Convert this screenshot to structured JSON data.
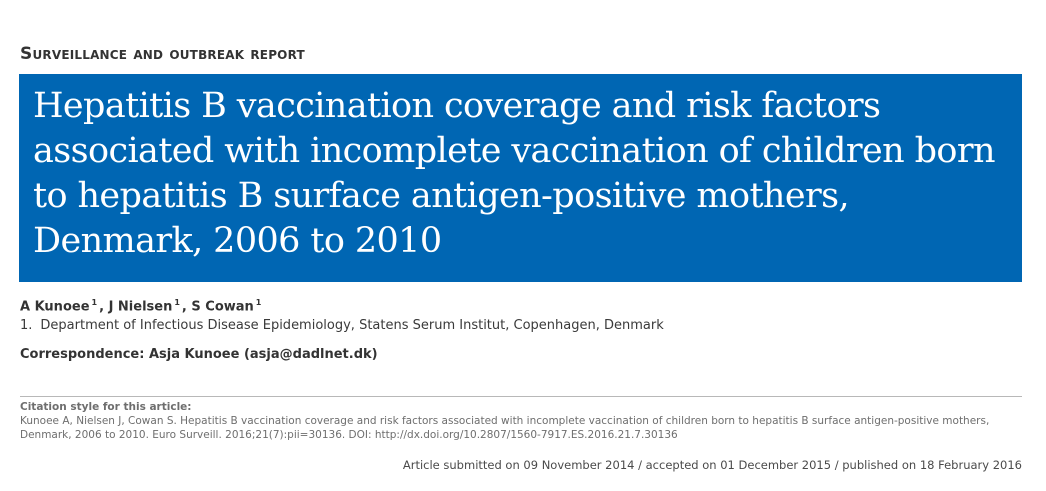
{
  "section_label": "Surveillance and outbreak report",
  "title": "Hepatitis B vaccination coverage and risk factors associated with incomplete vaccination of children born to hepatitis B surface antigen-positive mothers, Denmark, 2006 to 2010",
  "authors": [
    {
      "name": "A Kunoee",
      "affil": "1"
    },
    {
      "name": "J Nielsen",
      "affil": "1"
    },
    {
      "name": "S Cowan",
      "affil": "1"
    }
  ],
  "affiliation": {
    "number": "1.",
    "text": "Department of Infectious Disease Epidemiology, Statens Serum Institut, Copenhagen, Denmark"
  },
  "correspondence": "Correspondence: Asja Kunoee (asja@dadlnet.dk)",
  "citation": {
    "label": "Citation style for this article:",
    "text": "Kunoee A, Nielsen J, Cowan S. Hepatitis B vaccination coverage and risk factors associated with incomplete vaccination of children born to hepatitis B surface antigen-positive mothers, Denmark, 2006 to 2010. Euro Surveill. 2016;21(7):pii=30136. DOI: http://dx.doi.org/10.2807/1560-7917.ES.2016.21.7.30136"
  },
  "dates": "Article submitted on 09 November 2014 / accepted on 01 December 2015 / published on 18 February 2016",
  "colors": {
    "title_background": "#0066b3",
    "title_text": "#ffffff"
  }
}
